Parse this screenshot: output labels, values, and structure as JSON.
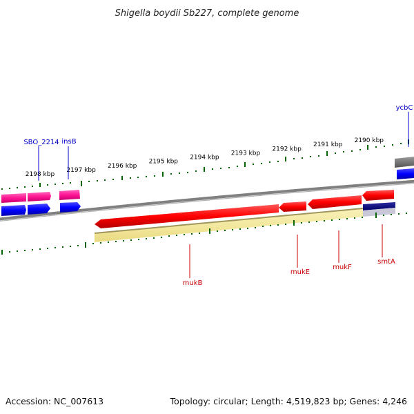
{
  "title": "Shigella boydii Sb227, complete genome",
  "footer": {
    "accession": "Accession: NC_007613",
    "topology": "Topology: circular; Length: 4,519,823 bp; Genes: 4,246"
  },
  "ruler": {
    "unit": "kbp",
    "ticks": [
      {
        "value": 2198,
        "label": "2198 kbp"
      },
      {
        "value": 2197,
        "label": "2197 kbp"
      },
      {
        "value": 2196,
        "label": "2196 kbp"
      },
      {
        "value": 2195,
        "label": "2195 kbp"
      },
      {
        "value": 2194,
        "label": "2194 kbp"
      },
      {
        "value": 2193,
        "label": "2193 kbp"
      },
      {
        "value": 2192,
        "label": "2192 kbp"
      },
      {
        "value": 2191,
        "label": "2191 kbp"
      },
      {
        "value": 2190,
        "label": "2190 kbp"
      }
    ]
  },
  "genes": [
    {
      "name": "SBO_2214",
      "strand": "+",
      "color": "#0000cc"
    },
    {
      "name": "insB",
      "strand": "+",
      "color": "#0000cc"
    },
    {
      "name": "ycbC",
      "strand": "+",
      "color": "#0000cc"
    },
    {
      "name": "mukB",
      "strand": "-",
      "color": "#cc0000"
    },
    {
      "name": "mukE",
      "strand": "-",
      "color": "#cc0000"
    },
    {
      "name": "mukF",
      "strand": "-",
      "color": "#cc0000"
    },
    {
      "name": "smtA",
      "strand": "-",
      "color": "#cc0000"
    }
  ],
  "colors": {
    "forward_cds": "#0000ff",
    "reverse_cds": "#ff0000",
    "forward_gene": "#ff3399",
    "reverse_gene": "#f2e69a",
    "rna": "#000080",
    "backbone": "#808080",
    "ruler": "#006400"
  }
}
